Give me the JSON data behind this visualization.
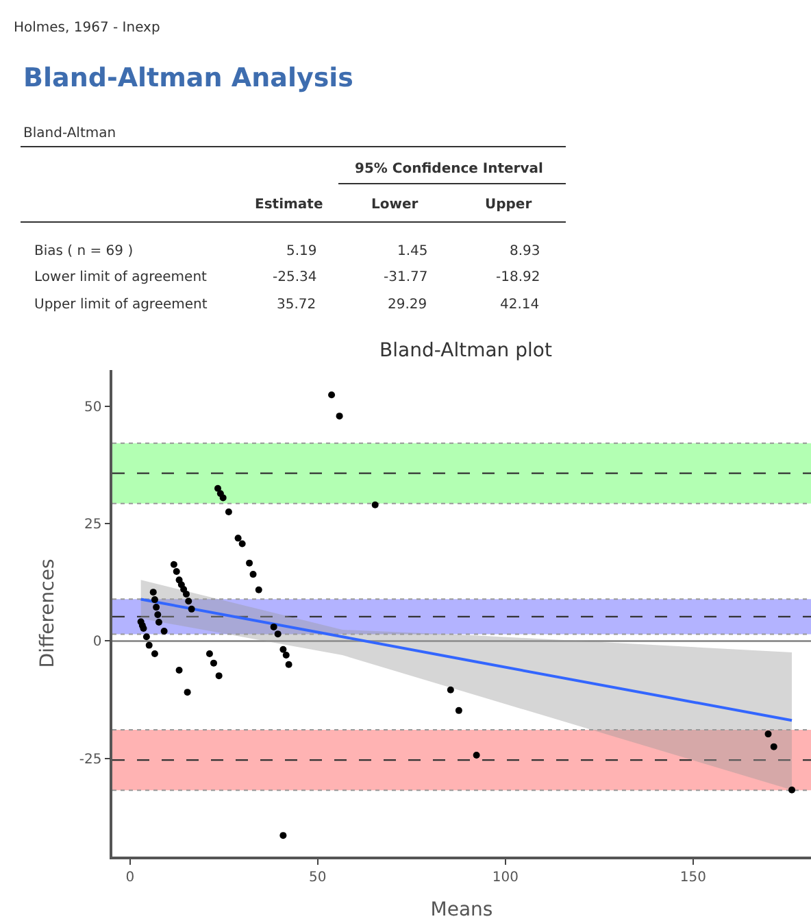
{
  "chart_data": {
    "type": "scatter",
    "title": "Bland-Altman plot",
    "xlabel": "Means",
    "ylabel": "Differences",
    "annotations": [
      "Holmes, 1967 - Inexp",
      "Bland-Altman Analysis",
      "Bland-Altman",
      "95% Confidence Interval",
      "Estimate",
      "Lower",
      "Upper",
      "Bias ( n = 69 )",
      "5.19",
      "1.45",
      "8.93",
      "Lower limit of agreement",
      "-25.34",
      "-31.77",
      "-18.92",
      "Upper limit of agreement",
      "35.72",
      "29.29",
      "42.14"
    ],
    "xlim": [
      -4.7,
      181.4
    ],
    "ylim": [
      -45.9,
      57.7
    ],
    "xticks": [
      0,
      50,
      100,
      150
    ],
    "yticks": [
      -25,
      0,
      25,
      50
    ],
    "grid": false,
    "series": [
      {
        "marker": "circle",
        "color": "#000000",
        "x": [
          2.9,
          3.3,
          3.6,
          4.4,
          5.1,
          6.6,
          6.2,
          6.6,
          7.0,
          7.4,
          7.7,
          9.1,
          11.7,
          12.4,
          13.1,
          13.7,
          14.3,
          15.0,
          15.6,
          16.4,
          13.1,
          15.3,
          23.4,
          24.1,
          24.8,
          26.3,
          28.8,
          29.9,
          31.8,
          32.8,
          34.3,
          21.2,
          22.3,
          23.7,
          38.3,
          39.4,
          40.8,
          41.6,
          42.3,
          40.8,
          53.7,
          55.8,
          65.3,
          85.4,
          87.6,
          92.3,
          170.0,
          171.5,
          176.3
        ],
        "values": [
          4.1,
          3.3,
          2.7,
          0.9,
          -0.9,
          -2.7,
          10.4,
          8.8,
          7.2,
          5.6,
          4.0,
          2.1,
          16.3,
          14.8,
          13.0,
          12.0,
          11.0,
          10.0,
          8.5,
          6.8,
          -6.2,
          -10.9,
          32.5,
          31.4,
          30.5,
          27.5,
          21.9,
          20.7,
          16.6,
          14.2,
          10.9,
          -2.7,
          -4.7,
          -7.4,
          3.0,
          1.5,
          -1.8,
          -3.0,
          -5.0,
          -41.4,
          52.4,
          47.9,
          29.0,
          -10.4,
          -14.8,
          -24.3,
          -19.8,
          -22.5,
          -31.7
        ]
      },
      {
        "type": "line",
        "color": "#3366ff",
        "x": [
          2.9,
          56.6,
          92,
          176.3
        ],
        "values": [
          8.9,
          0.9,
          -4.4,
          -16.9
        ],
        "lower": [
          4.8,
          -3.0,
          -11.5,
          -31.7
        ],
        "upper": [
          13.0,
          2.4,
          1.2,
          -2.4
        ]
      }
    ],
    "bands": [
      {
        "axis": "y",
        "from": 29.29,
        "to": 42.14,
        "color": "#b3ffb3"
      },
      {
        "axis": "y",
        "from": 1.45,
        "to": 8.93,
        "color": "#b3b3ff"
      },
      {
        "axis": "y",
        "from": -31.77,
        "to": -18.92,
        "color": "#ffb3b3"
      }
    ],
    "ref_lines": [
      {
        "axis": "y",
        "value": 0,
        "color": "#808080",
        "line_style": "solid"
      },
      {
        "axis": "y",
        "value": 35.72,
        "color": "#333333",
        "line_style": "dashed"
      },
      {
        "axis": "y",
        "value": 5.19,
        "color": "#333333",
        "line_style": "dashed"
      },
      {
        "axis": "y",
        "value": -25.34,
        "color": "#333333",
        "line_style": "dashed"
      }
    ]
  }
}
